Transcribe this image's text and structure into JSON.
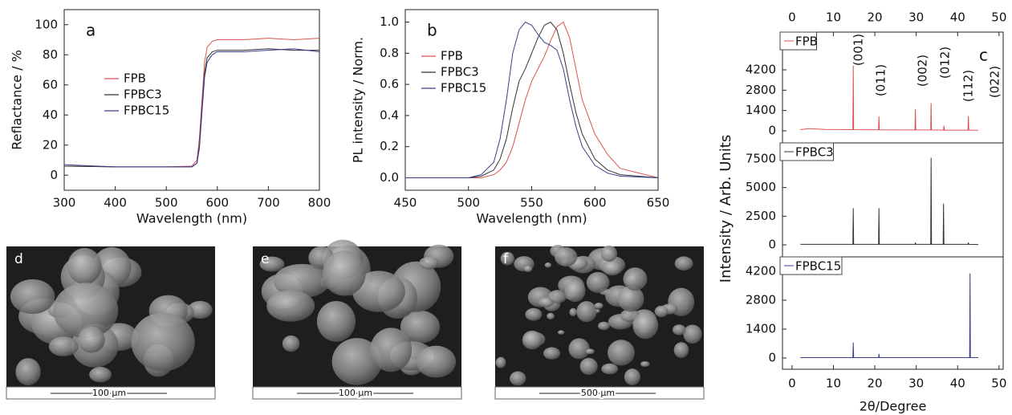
{
  "chart_data": [
    {
      "type": "line",
      "panel_label": "a",
      "xlabel": "Wavelength (nm)",
      "ylabel": "Reflactance / %",
      "xlim": [
        300,
        800
      ],
      "xticks": [
        300,
        400,
        500,
        600,
        700,
        800
      ],
      "ylim": [
        -10,
        110
      ],
      "yticks": [
        0,
        20,
        40,
        60,
        80,
        100
      ],
      "x": [
        300,
        400,
        500,
        550,
        560,
        565,
        570,
        575,
        580,
        590,
        600,
        650,
        700,
        750,
        800
      ],
      "series": [
        {
          "name": "FPB",
          "color": "#d9534f",
          "values": [
            6,
            5.5,
            5.5,
            6,
            10,
            25,
            50,
            75,
            85,
            89,
            90,
            90,
            91,
            90,
            91
          ]
        },
        {
          "name": "FPBC3",
          "color": "#333333",
          "values": [
            6,
            5.5,
            5.5,
            5.5,
            8,
            20,
            45,
            68,
            78,
            82,
            83,
            83,
            84,
            83,
            83
          ]
        },
        {
          "name": "FPBC15",
          "color": "#3a3f8f",
          "values": [
            7,
            5.5,
            5.5,
            5.5,
            8,
            18,
            42,
            65,
            75,
            80,
            82,
            82,
            83,
            84,
            82
          ]
        }
      ]
    },
    {
      "type": "line",
      "panel_label": "b",
      "xlabel": "Wavelength (nm)",
      "ylabel": "PL intensity / Norm.",
      "xlim": [
        450,
        650
      ],
      "xticks": [
        450,
        500,
        550,
        600,
        650
      ],
      "ylim": [
        -0.08,
        1.08
      ],
      "yticks": [
        {
          "value": 0,
          "label": "0.0"
        },
        0.2,
        0.4,
        0.6,
        0.8,
        {
          "value": 1,
          "label": "1.0"
        }
      ],
      "x": [
        450,
        500,
        510,
        520,
        525,
        530,
        535,
        540,
        545,
        550,
        555,
        560,
        565,
        570,
        575,
        580,
        585,
        590,
        600,
        610,
        620,
        650
      ],
      "series": [
        {
          "name": "FPB",
          "color": "#d9534f",
          "values": [
            0,
            0,
            0,
            0.02,
            0.05,
            0.1,
            0.2,
            0.35,
            0.5,
            0.62,
            0.7,
            0.78,
            0.88,
            0.97,
            1.0,
            0.9,
            0.7,
            0.5,
            0.28,
            0.15,
            0.06,
            0
          ]
        },
        {
          "name": "FPBC3",
          "color": "#333333",
          "values": [
            0,
            0,
            0.01,
            0.05,
            0.12,
            0.25,
            0.45,
            0.62,
            0.7,
            0.8,
            0.9,
            0.98,
            1.0,
            0.95,
            0.8,
            0.6,
            0.42,
            0.28,
            0.12,
            0.05,
            0.02,
            0
          ]
        },
        {
          "name": "FPBC15",
          "color": "#3a3f8f",
          "values": [
            0,
            0,
            0.02,
            0.1,
            0.25,
            0.5,
            0.8,
            0.95,
            1.0,
            0.98,
            0.92,
            0.87,
            0.85,
            0.82,
            0.7,
            0.5,
            0.33,
            0.2,
            0.08,
            0.03,
            0.01,
            0
          ]
        }
      ]
    },
    {
      "type": "xrd",
      "panel_label": "c",
      "xlabel": "2θ/Degree",
      "ylabel": "Intensity / Arb. Units",
      "xlim": [
        -2.3,
        51
      ],
      "xticks": [
        0,
        10,
        20,
        30,
        40,
        50
      ],
      "annotations": [
        "(001)",
        "(011)",
        "(002)",
        "(012)",
        "(112)",
        "(022)"
      ],
      "panels": [
        {
          "ylim": [
            -830,
            6800
          ],
          "yticks": [
            0,
            1400,
            2800,
            4200
          ],
          "series": [
            {
              "name": "FPB",
              "color": "#d9534f",
              "x": [
                2,
                4,
                8,
                14.7,
                14.8,
                14.9,
                20.9,
                21,
                21.1,
                29.7,
                29.8,
                29.9,
                33.5,
                33.6,
                33.7,
                36.6,
                36.7,
                36.8,
                42.5,
                42.6,
                42.7,
                45
              ],
              "values": [
                80,
                150,
                100,
                80,
                4500,
                80,
                70,
                1000,
                70,
                60,
                1500,
                60,
                60,
                1900,
                60,
                50,
                350,
                50,
                50,
                1000,
                50,
                40
              ]
            }
          ]
        },
        {
          "ylim": [
            -1050,
            8900
          ],
          "yticks": [
            0,
            2500,
            5000,
            7500
          ],
          "series": [
            {
              "name": "FPBC3",
              "color": "#333333",
              "x": [
                2,
                14.7,
                14.8,
                14.9,
                20.9,
                21,
                21.1,
                29.7,
                29.8,
                29.9,
                33.5,
                33.6,
                33.7,
                36.5,
                36.6,
                36.7,
                42.5,
                42.6,
                42.7,
                45
              ],
              "values": [
                40,
                40,
                3200,
                40,
                40,
                3200,
                40,
                40,
                200,
                40,
                40,
                7600,
                40,
                40,
                3600,
                40,
                40,
                200,
                40,
                30
              ]
            }
          ]
        },
        {
          "ylim": [
            -545,
            4900
          ],
          "yticks": [
            0,
            1400,
            2800,
            4200
          ],
          "series": [
            {
              "name": "FPBC15",
              "color": "#3a3f8f",
              "x": [
                2,
                14.7,
                14.8,
                14.9,
                20.9,
                21,
                21.1,
                42.9,
                43,
                43.1,
                45
              ],
              "values": [
                20,
                20,
                750,
                20,
                20,
                200,
                20,
                20,
                4100,
                20,
                20
              ]
            }
          ]
        }
      ]
    }
  ],
  "images": [
    {
      "label": "d",
      "scale_bar": "100 μm"
    },
    {
      "label": "e",
      "scale_bar": "100 μm"
    },
    {
      "label": "f",
      "scale_bar": "500 μm"
    }
  ]
}
